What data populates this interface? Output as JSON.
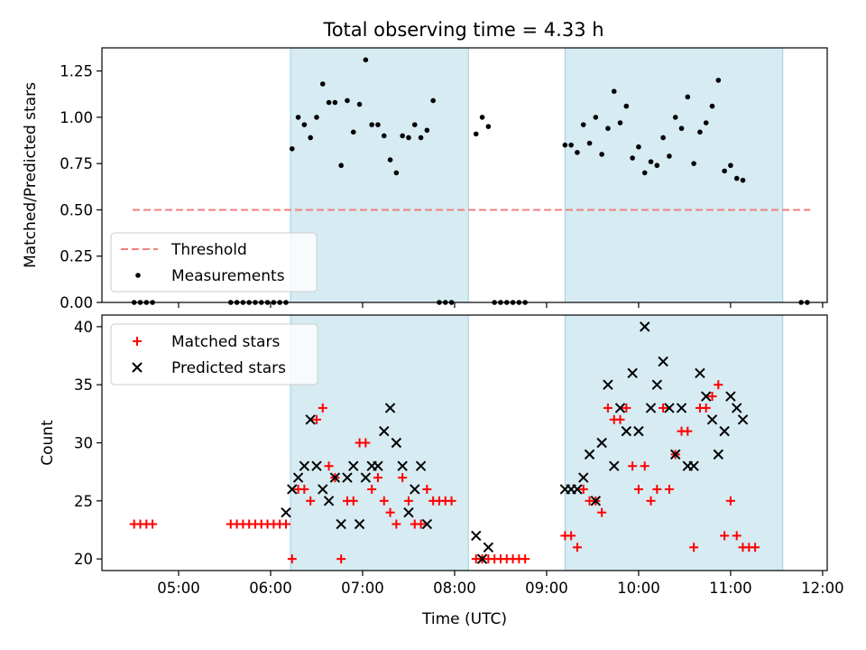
{
  "chart_data": [
    {
      "type": "scatter",
      "title": "Total observing time = 4.33 h",
      "ylabel": "Matched/Predicted stars",
      "ylim": [
        0,
        1.375
      ],
      "xlim": [
        "04:10",
        "12:03"
      ],
      "yticks": [
        {
          "value": 0.0,
          "label": "0.00"
        },
        {
          "value": 0.25,
          "label": "0.25"
        },
        {
          "value": 0.5,
          "label": "0.50"
        },
        {
          "value": 0.75,
          "label": "0.75"
        },
        {
          "value": 1.0,
          "label": "1.00"
        },
        {
          "value": 1.25,
          "label": "1.25"
        }
      ],
      "xticks": [
        "05:00",
        "06:00",
        "07:00",
        "08:00",
        "09:00",
        "10:00",
        "11:00",
        "12:00"
      ],
      "shaded_intervals": [
        [
          "06:13",
          "08:09"
        ],
        [
          "09:12",
          "11:34"
        ]
      ],
      "threshold": {
        "name": "Threshold",
        "value": 0.5,
        "x_range": [
          "04:30",
          "11:52"
        ],
        "color": "#f08080"
      },
      "legend": {
        "placement": "lower-left",
        "entries": [
          "Threshold",
          "Measurements"
        ]
      },
      "series": [
        {
          "name": "Measurements",
          "color": "#000000",
          "points": [
            [
              "04:31",
              0
            ],
            [
              "04:35",
              0
            ],
            [
              "04:39",
              0
            ],
            [
              "04:43",
              0
            ],
            [
              "05:34",
              0
            ],
            [
              "05:38",
              0
            ],
            [
              "05:42",
              0
            ],
            [
              "05:46",
              0
            ],
            [
              "05:50",
              0
            ],
            [
              "05:54",
              0
            ],
            [
              "05:58",
              0
            ],
            [
              "06:02",
              0
            ],
            [
              "06:06",
              0
            ],
            [
              "06:10",
              0
            ],
            [
              "06:14",
              0.83
            ],
            [
              "06:18",
              1.0
            ],
            [
              "06:22",
              0.96
            ],
            [
              "06:26",
              0.89
            ],
            [
              "06:30",
              1.0
            ],
            [
              "06:34",
              1.18
            ],
            [
              "06:38",
              1.08
            ],
            [
              "06:42",
              1.08
            ],
            [
              "06:46",
              0.74
            ],
            [
              "06:50",
              1.09
            ],
            [
              "06:54",
              0.92
            ],
            [
              "06:58",
              1.07
            ],
            [
              "07:02",
              1.31
            ],
            [
              "07:06",
              0.96
            ],
            [
              "07:10",
              0.96
            ],
            [
              "07:14",
              0.9
            ],
            [
              "07:18",
              0.77
            ],
            [
              "07:22",
              0.7
            ],
            [
              "07:26",
              0.9
            ],
            [
              "07:30",
              0.89
            ],
            [
              "07:34",
              0.96
            ],
            [
              "07:38",
              0.89
            ],
            [
              "07:42",
              0.93
            ],
            [
              "07:46",
              1.09
            ],
            [
              "07:50",
              0
            ],
            [
              "07:54",
              0
            ],
            [
              "07:58",
              0
            ],
            [
              "08:14",
              0.91
            ],
            [
              "08:18",
              1.0
            ],
            [
              "08:22",
              0.95
            ],
            [
              "08:26",
              0
            ],
            [
              "08:30",
              0
            ],
            [
              "08:34",
              0
            ],
            [
              "08:38",
              0
            ],
            [
              "08:42",
              0
            ],
            [
              "08:46",
              0
            ],
            [
              "09:12",
              0.85
            ],
            [
              "09:16",
              0.85
            ],
            [
              "09:20",
              0.81
            ],
            [
              "09:24",
              0.96
            ],
            [
              "09:28",
              0.86
            ],
            [
              "09:32",
              1.0
            ],
            [
              "09:36",
              0.8
            ],
            [
              "09:40",
              0.94
            ],
            [
              "09:44",
              1.14
            ],
            [
              "09:48",
              0.97
            ],
            [
              "09:52",
              1.06
            ],
            [
              "09:56",
              0.78
            ],
            [
              "10:00",
              0.84
            ],
            [
              "10:04",
              0.7
            ],
            [
              "10:08",
              0.76
            ],
            [
              "10:12",
              0.74
            ],
            [
              "10:16",
              0.89
            ],
            [
              "10:20",
              0.79
            ],
            [
              "10:24",
              1.0
            ],
            [
              "10:28",
              0.94
            ],
            [
              "10:32",
              1.11
            ],
            [
              "10:36",
              0.75
            ],
            [
              "10:40",
              0.92
            ],
            [
              "10:44",
              0.97
            ],
            [
              "10:48",
              1.06
            ],
            [
              "10:52",
              1.2
            ],
            [
              "10:56",
              0.71
            ],
            [
              "11:00",
              0.74
            ],
            [
              "11:04",
              0.67
            ],
            [
              "11:08",
              0.66
            ],
            [
              "11:46",
              0
            ],
            [
              "11:50",
              0
            ]
          ]
        }
      ]
    },
    {
      "type": "scatter",
      "xlabel": "Time (UTC)",
      "ylabel": "Count",
      "ylim": [
        19,
        41
      ],
      "xlim": [
        "04:10",
        "12:03"
      ],
      "yticks": [
        {
          "value": 20,
          "label": "20"
        },
        {
          "value": 25,
          "label": "25"
        },
        {
          "value": 30,
          "label": "30"
        },
        {
          "value": 35,
          "label": "35"
        },
        {
          "value": 40,
          "label": "40"
        }
      ],
      "xticks": [
        "05:00",
        "06:00",
        "07:00",
        "08:00",
        "09:00",
        "10:00",
        "11:00",
        "12:00"
      ],
      "shaded_intervals": [
        [
          "06:13",
          "08:09"
        ],
        [
          "09:12",
          "11:34"
        ]
      ],
      "legend": {
        "placement": "upper-left",
        "entries": [
          "Matched stars",
          "Predicted stars"
        ]
      },
      "series": [
        {
          "name": "Matched stars",
          "marker": "plus",
          "color": "#ff0000",
          "points": [
            [
              "04:31",
              23
            ],
            [
              "04:35",
              23
            ],
            [
              "04:39",
              23
            ],
            [
              "04:43",
              23
            ],
            [
              "05:34",
              23
            ],
            [
              "05:38",
              23
            ],
            [
              "05:42",
              23
            ],
            [
              "05:46",
              23
            ],
            [
              "05:50",
              23
            ],
            [
              "05:54",
              23
            ],
            [
              "05:58",
              23
            ],
            [
              "06:02",
              23
            ],
            [
              "06:06",
              23
            ],
            [
              "06:10",
              23
            ],
            [
              "06:14",
              20
            ],
            [
              "06:18",
              26
            ],
            [
              "06:22",
              26
            ],
            [
              "06:26",
              25
            ],
            [
              "06:30",
              32
            ],
            [
              "06:34",
              33
            ],
            [
              "06:38",
              28
            ],
            [
              "06:42",
              27
            ],
            [
              "06:46",
              20
            ],
            [
              "06:50",
              25
            ],
            [
              "06:54",
              25
            ],
            [
              "06:58",
              30
            ],
            [
              "07:02",
              30
            ],
            [
              "07:06",
              26
            ],
            [
              "07:10",
              27
            ],
            [
              "07:14",
              25
            ],
            [
              "07:18",
              24
            ],
            [
              "07:22",
              23
            ],
            [
              "07:26",
              27
            ],
            [
              "07:30",
              25
            ],
            [
              "07:34",
              23
            ],
            [
              "07:38",
              23
            ],
            [
              "07:42",
              26
            ],
            [
              "07:46",
              25
            ],
            [
              "07:50",
              25
            ],
            [
              "07:54",
              25
            ],
            [
              "07:58",
              25
            ],
            [
              "08:14",
              20
            ],
            [
              "08:18",
              20
            ],
            [
              "08:22",
              20
            ],
            [
              "08:26",
              20
            ],
            [
              "08:30",
              20
            ],
            [
              "08:34",
              20
            ],
            [
              "08:38",
              20
            ],
            [
              "08:42",
              20
            ],
            [
              "08:46",
              20
            ],
            [
              "09:12",
              22
            ],
            [
              "09:16",
              22
            ],
            [
              "09:20",
              21
            ],
            [
              "09:24",
              26
            ],
            [
              "09:28",
              25
            ],
            [
              "09:32",
              25
            ],
            [
              "09:36",
              24
            ],
            [
              "09:40",
              33
            ],
            [
              "09:44",
              32
            ],
            [
              "09:48",
              32
            ],
            [
              "09:52",
              33
            ],
            [
              "09:56",
              28
            ],
            [
              "10:00",
              26
            ],
            [
              "10:04",
              28
            ],
            [
              "10:08",
              25
            ],
            [
              "10:12",
              26
            ],
            [
              "10:16",
              33
            ],
            [
              "10:20",
              26
            ],
            [
              "10:24",
              29
            ],
            [
              "10:28",
              31
            ],
            [
              "10:32",
              31
            ],
            [
              "10:36",
              21
            ],
            [
              "10:40",
              33
            ],
            [
              "10:44",
              33
            ],
            [
              "10:48",
              34
            ],
            [
              "10:52",
              35
            ],
            [
              "10:56",
              22
            ],
            [
              "11:00",
              25
            ],
            [
              "11:04",
              22
            ],
            [
              "11:08",
              21
            ],
            [
              "11:12",
              21
            ],
            [
              "11:16",
              21
            ]
          ]
        },
        {
          "name": "Predicted stars",
          "marker": "x",
          "color": "#000000",
          "points": [
            [
              "06:10",
              24
            ],
            [
              "06:14",
              26
            ],
            [
              "06:18",
              27
            ],
            [
              "06:22",
              28
            ],
            [
              "06:26",
              32
            ],
            [
              "06:30",
              28
            ],
            [
              "06:34",
              26
            ],
            [
              "06:38",
              25
            ],
            [
              "06:42",
              27
            ],
            [
              "06:46",
              23
            ],
            [
              "06:50",
              27
            ],
            [
              "06:54",
              28
            ],
            [
              "06:58",
              23
            ],
            [
              "07:02",
              27
            ],
            [
              "07:06",
              28
            ],
            [
              "07:10",
              28
            ],
            [
              "07:14",
              31
            ],
            [
              "07:18",
              33
            ],
            [
              "07:22",
              30
            ],
            [
              "07:26",
              28
            ],
            [
              "07:30",
              24
            ],
            [
              "07:34",
              26
            ],
            [
              "07:38",
              28
            ],
            [
              "07:42",
              23
            ],
            [
              "08:14",
              22
            ],
            [
              "08:18",
              20
            ],
            [
              "08:22",
              21
            ],
            [
              "09:12",
              26
            ],
            [
              "09:16",
              26
            ],
            [
              "09:20",
              26
            ],
            [
              "09:24",
              27
            ],
            [
              "09:28",
              29
            ],
            [
              "09:32",
              25
            ],
            [
              "09:36",
              30
            ],
            [
              "09:40",
              35
            ],
            [
              "09:44",
              28
            ],
            [
              "09:48",
              33
            ],
            [
              "09:52",
              31
            ],
            [
              "09:56",
              36
            ],
            [
              "10:00",
              31
            ],
            [
              "10:04",
              40
            ],
            [
              "10:08",
              33
            ],
            [
              "10:12",
              35
            ],
            [
              "10:16",
              37
            ],
            [
              "10:20",
              33
            ],
            [
              "10:24",
              29
            ],
            [
              "10:28",
              33
            ],
            [
              "10:32",
              28
            ],
            [
              "10:36",
              28
            ],
            [
              "10:40",
              36
            ],
            [
              "10:44",
              34
            ],
            [
              "10:48",
              32
            ],
            [
              "10:52",
              29
            ],
            [
              "10:56",
              31
            ],
            [
              "11:00",
              34
            ],
            [
              "11:04",
              33
            ],
            [
              "11:08",
              32
            ]
          ]
        }
      ]
    }
  ]
}
